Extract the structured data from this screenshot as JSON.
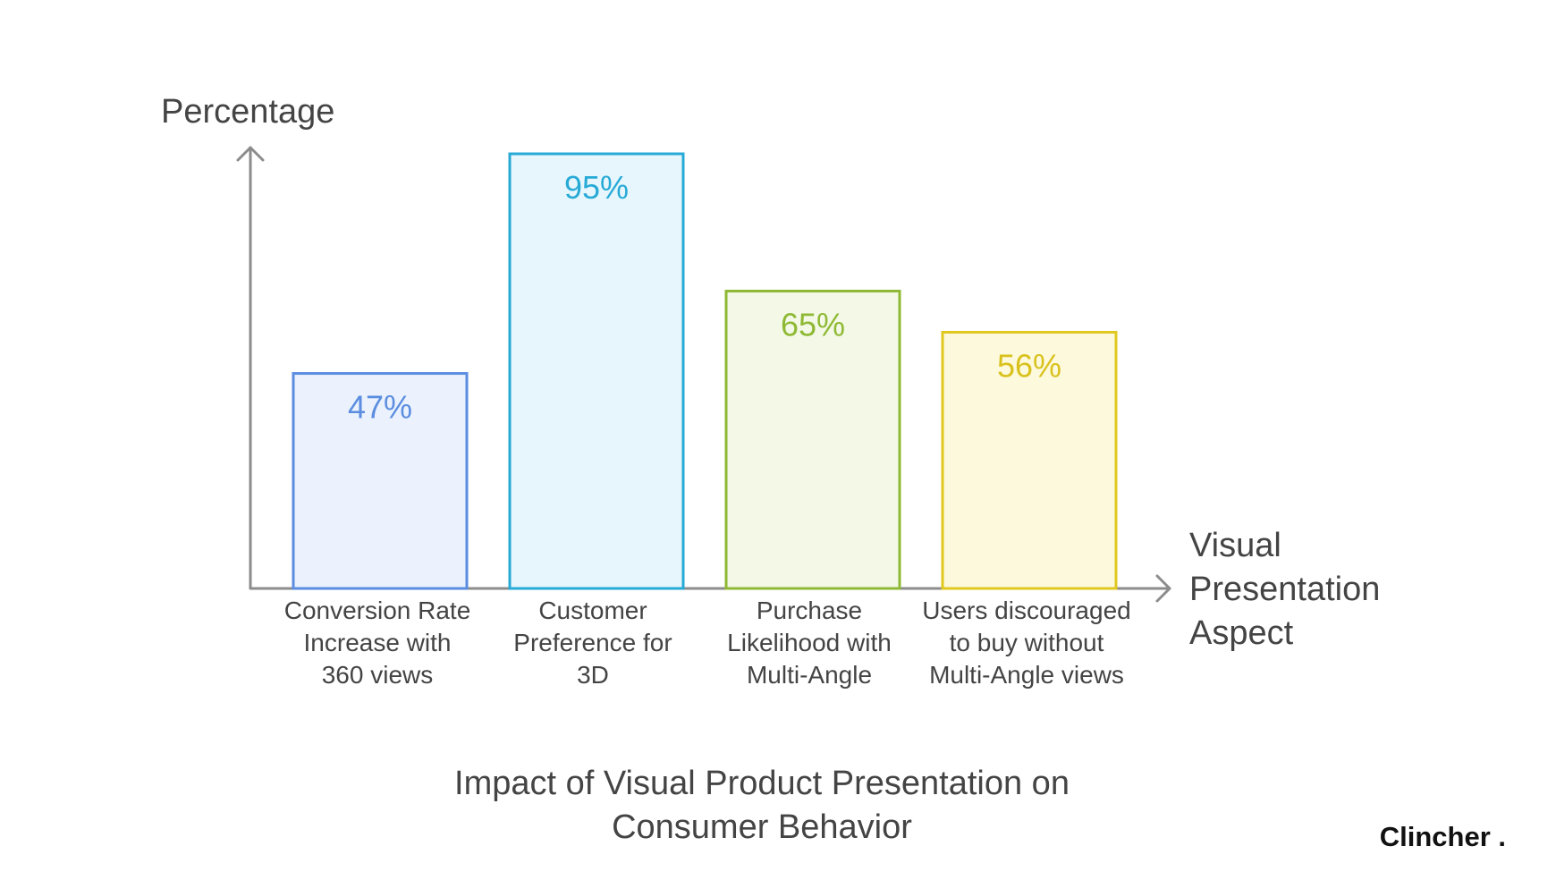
{
  "chart_data": {
    "type": "bar",
    "title": [
      "Impact of Visual Product Presentation on",
      "Consumer Behavior"
    ],
    "ylabel": "Percentage",
    "xlabel": [
      "Visual",
      "Presentation",
      "Aspect"
    ],
    "ylim": [
      0,
      100
    ],
    "grid": false,
    "categories": [
      [
        "Conversion Rate",
        "Increase with",
        "360 views"
      ],
      [
        "Customer",
        "Preference for",
        "3D"
      ],
      [
        "Purchase",
        "Likelihood with",
        "Multi-Angle"
      ],
      [
        "Users discouraged",
        "to buy without",
        "Multi-Angle views"
      ]
    ],
    "values": [
      47,
      95,
      65,
      56
    ],
    "value_labels": [
      "47%",
      "95%",
      "65%",
      "56%"
    ],
    "bar_colors": [
      {
        "stroke": "#5b8de0",
        "fill": "#ebf2fd",
        "text": "#5b8de0"
      },
      {
        "stroke": "#27aad6",
        "fill": "#e6f6fc",
        "text": "#27aad6"
      },
      {
        "stroke": "#8fb935",
        "fill": "#f3f9e6",
        "text": "#8fb935"
      },
      {
        "stroke": "#e0c81f",
        "fill": "#fdf9dc",
        "text": "#d9c11c"
      }
    ]
  },
  "brand": {
    "name": "Clincher ."
  }
}
